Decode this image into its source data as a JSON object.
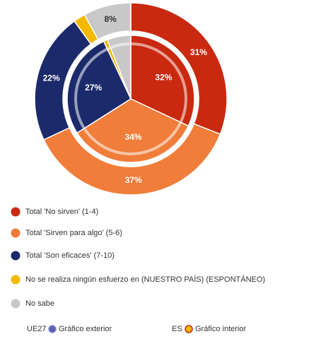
{
  "chart_data": {
    "type": "nested-donut",
    "categories": [
      "Total 'No sirven' (1-4)",
      "Total 'Sirven para algo' (5-6)",
      "Total 'Son eficaces' (7-10)",
      "No se realiza ningún esfuerzo en (NUESTRO PAÍS) (ESPONTÁNEO)",
      "No sabe"
    ],
    "colors": [
      "#c8290f",
      "#f07d3a",
      "#1b2a6b",
      "#f5b800",
      "#c8c8c8"
    ],
    "series": [
      {
        "name": "UE27",
        "caption": "Gráfico exterior",
        "color": "#5a5fb0",
        "values": [
          31,
          37,
          22,
          2,
          8
        ],
        "value_labels": [
          "31%",
          "37%",
          "22%",
          null,
          "8%"
        ]
      },
      {
        "name": "ES",
        "caption": "Gráfico interior",
        "color": "#f5b800",
        "values": [
          32,
          34,
          27,
          1,
          6
        ],
        "value_labels": [
          "32%",
          "34%",
          "27%",
          null,
          null
        ]
      }
    ]
  }
}
